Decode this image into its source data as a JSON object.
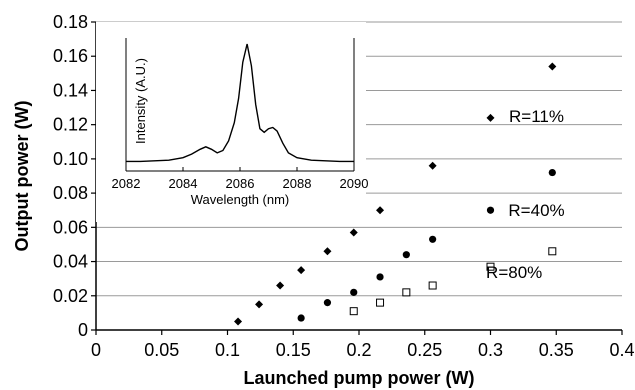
{
  "chart_data": [
    {
      "type": "scatter",
      "xlabel": "Launched pump power (W)",
      "ylabel": "Output power (W)",
      "xlim": [
        0,
        0.4
      ],
      "ylim": [
        0,
        0.18
      ],
      "x_ticks": [
        "0",
        "0.05",
        "0.1",
        "0.15",
        "0.2",
        "0.25",
        "0.3",
        "0.35",
        "0.4"
      ],
      "y_ticks": [
        "0",
        "0.02",
        "0.04",
        "0.06",
        "0.08",
        "0.10",
        "0.12",
        "0.14",
        "0.16",
        "0.18"
      ],
      "grid": "horizontal",
      "series": [
        {
          "name": "R=11%",
          "marker": "diamond",
          "points": [
            [
              0.108,
              0.005
            ],
            [
              0.124,
              0.015
            ],
            [
              0.14,
              0.026
            ],
            [
              0.156,
              0.035
            ],
            [
              0.176,
              0.046
            ],
            [
              0.196,
              0.057
            ],
            [
              0.216,
              0.07
            ],
            [
              0.256,
              0.096
            ],
            [
              0.3,
              0.124
            ],
            [
              0.347,
              0.154
            ]
          ]
        },
        {
          "name": "R=40%",
          "marker": "circle",
          "points": [
            [
              0.156,
              0.007
            ],
            [
              0.176,
              0.016
            ],
            [
              0.196,
              0.022
            ],
            [
              0.216,
              0.031
            ],
            [
              0.236,
              0.044
            ],
            [
              0.256,
              0.053
            ],
            [
              0.3,
              0.07
            ],
            [
              0.347,
              0.092
            ]
          ]
        },
        {
          "name": "R=80%",
          "marker": "open-square",
          "points": [
            [
              0.196,
              0.011
            ],
            [
              0.216,
              0.016
            ],
            [
              0.236,
              0.022
            ],
            [
              0.256,
              0.026
            ],
            [
              0.3,
              0.037
            ],
            [
              0.347,
              0.046
            ]
          ]
        }
      ],
      "annotations": [
        {
          "text": "R=11%",
          "x": 0.335,
          "y": 0.125
        },
        {
          "text": "R=40%",
          "x": 0.335,
          "y": 0.07
        },
        {
          "text": "R=80%",
          "x": 0.318,
          "y": 0.034
        }
      ]
    },
    {
      "type": "line",
      "inset": true,
      "xlabel": "Wavelength (nm)",
      "ylabel": "Intensity (A.U.)",
      "xlim": [
        2082,
        2090
      ],
      "x_ticks": [
        "2082",
        "2084",
        "2086",
        "2088",
        "2090"
      ],
      "series": [
        {
          "x": [
            2082,
            2082.5,
            2083,
            2083.5,
            2084,
            2084.3,
            2084.6,
            2084.8,
            2085,
            2085.2,
            2085.4,
            2085.6,
            2085.8,
            2085.95,
            2086.1,
            2086.25,
            2086.4,
            2086.55,
            2086.7,
            2086.85,
            2087,
            2087.15,
            2087.3,
            2087.5,
            2087.7,
            2088,
            2088.5,
            2089,
            2089.5,
            2090
          ],
          "y": [
            0.03,
            0.03,
            0.035,
            0.04,
            0.06,
            0.09,
            0.13,
            0.15,
            0.13,
            0.1,
            0.12,
            0.2,
            0.35,
            0.55,
            0.85,
            1.0,
            0.82,
            0.5,
            0.3,
            0.27,
            0.3,
            0.31,
            0.28,
            0.18,
            0.1,
            0.06,
            0.04,
            0.035,
            0.03,
            0.03
          ]
        }
      ]
    }
  ]
}
